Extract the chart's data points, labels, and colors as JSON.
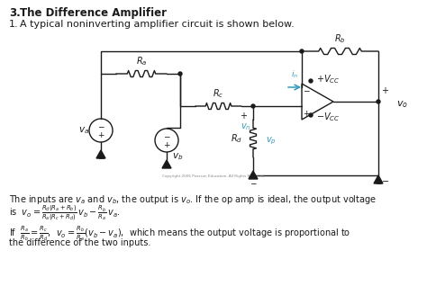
{
  "title_bold": "3.  The Difference Amplifier",
  "item1": "1.  A typical noninverting amplifier circuit is shown below.",
  "bg_color": "#ffffff",
  "text_color": "#000000",
  "blue_color": "#3399bb",
  "black": "#1a1a1a",
  "circuit_gray": "#555555"
}
